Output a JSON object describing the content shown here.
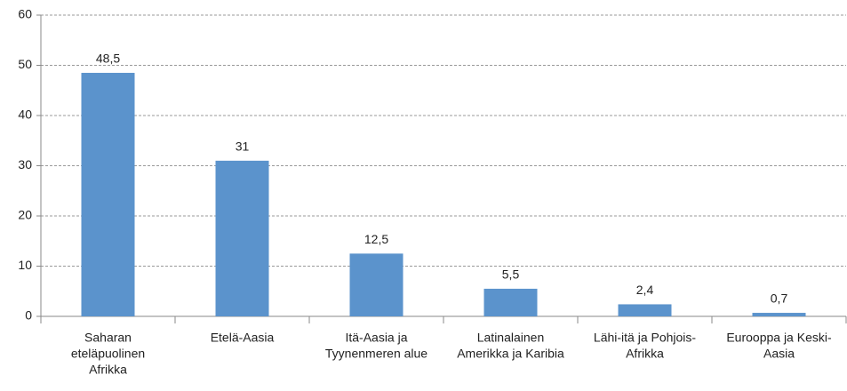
{
  "chart_data": {
    "type": "bar",
    "categories": [
      [
        "Saharan",
        "eteläpuolinen",
        "Afrikka"
      ],
      [
        "Etelä-Aasia"
      ],
      [
        "Itä-Aasia ja",
        "Tyynenmeren alue"
      ],
      [
        "Latinalainen",
        "Amerikka ja Karibia"
      ],
      [
        "Lähi-itä ja Pohjois-",
        "Afrikka"
      ],
      [
        "Eurooppa ja Keski-",
        "Aasia"
      ]
    ],
    "values": [
      48.5,
      31,
      12.5,
      5.5,
      2.4,
      0.7
    ],
    "value_labels": [
      "48,5",
      "31",
      "12,5",
      "5,5",
      "2,4",
      "0,7"
    ],
    "color": "#5b93cc",
    "ylim": [
      0,
      60
    ],
    "yticks": [
      0,
      10,
      20,
      30,
      40,
      50,
      60
    ],
    "grid": true
  }
}
